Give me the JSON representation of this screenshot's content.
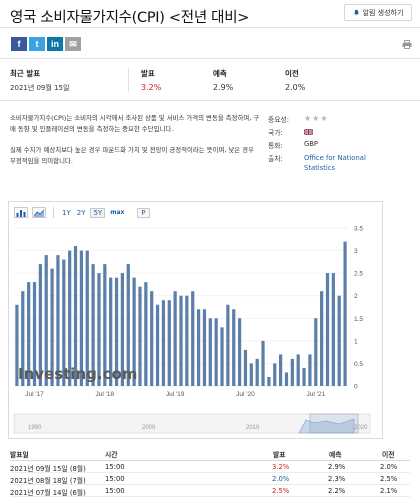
{
  "header": {
    "title": "영국 소비자물가지수(CPI) <전년 대비>",
    "alert_label": "알림 생성하기"
  },
  "share": {
    "buttons": [
      {
        "name": "facebook",
        "glyph": "f",
        "color": "#3b5998"
      },
      {
        "name": "twitter",
        "glyph": "t",
        "color": "#3aa3e3"
      },
      {
        "name": "linkedin",
        "glyph": "in",
        "color": "#0e76a8"
      },
      {
        "name": "email",
        "glyph": "✉",
        "color": "#a0a0a0"
      }
    ]
  },
  "stats": {
    "latest_label": "최근 발표",
    "latest_date": "2021년 09월 15일",
    "actual_label": "발표",
    "actual_value": "3.2%",
    "forecast_label": "예측",
    "forecast_value": "2.9%",
    "previous_label": "이전",
    "previous_value": "2.0%"
  },
  "description": {
    "p1": "소비자물가지수(CPI)는 소비자의 시각에서 조사된 상품 및 서비스 가격의 변동을 측정하며, 구매 동향 및 인플레이션의 변동을 측정하는 중요한 수단입니다.",
    "p2": "실제 수치가 예상치보다 높은 경우 파운드화 가치 및 전망이 긍정적이라는 뜻이며, 낮은 경우 부정적임을 의미합니다."
  },
  "meta": {
    "importance_label": "중요성:",
    "stars": "★★★",
    "country_label": "국가:",
    "currency_label": "통화:",
    "currency": "GBP",
    "source_label": "출처:",
    "source_line1": "Office for National",
    "source_line2": "Statistics"
  },
  "toolbar": {
    "ranges": [
      "1Y",
      "2Y",
      "5Y",
      "max"
    ],
    "active": "5Y",
    "p_label": "P"
  },
  "chart_data": {
    "type": "bar",
    "x_tick_labels": [
      "Jul '17",
      "Jul '18",
      "Jul '19",
      "Jul '20",
      "Jul '21"
    ],
    "y_ticks": [
      0,
      0.5,
      1,
      1.5,
      2,
      2.5,
      3,
      3.5
    ],
    "ylim": [
      0,
      3.5
    ],
    "series": [
      {
        "values": [
          1.8,
          2.1,
          2.3,
          2.3,
          2.7,
          2.9,
          2.6,
          2.9,
          2.8,
          3.0,
          3.1,
          3.0,
          3.0,
          2.7,
          2.5,
          2.7,
          2.4,
          2.4,
          2.5,
          2.7,
          2.4,
          2.2,
          2.3,
          2.1,
          1.8,
          1.9,
          1.9,
          2.1,
          2.0,
          2.0,
          2.1,
          1.7,
          1.7,
          1.5,
          1.5,
          1.3,
          1.8,
          1.7,
          1.5,
          0.8,
          0.5,
          0.6,
          1.0,
          0.2,
          0.5,
          0.7,
          0.3,
          0.6,
          0.7,
          0.4,
          0.7,
          1.5,
          2.1,
          2.5,
          2.5,
          2.0,
          3.2
        ]
      }
    ],
    "navigator_labels": [
      "1990",
      "2000",
      "2010",
      "2020"
    ],
    "watermark": "Investing.com"
  },
  "history": {
    "headers": [
      "발표일",
      "시간",
      "발표",
      "예측",
      "이전"
    ],
    "rows": [
      {
        "date": "2021년 09월 15일 (8월)",
        "time": "15:00",
        "actual": "3.2%",
        "actual_color": "red",
        "forecast": "2.9%",
        "previous": "2.0%"
      },
      {
        "date": "2021년 08월 18일 (7월)",
        "time": "15:00",
        "actual": "2.0%",
        "actual_color": "blue",
        "forecast": "2.3%",
        "previous": "2.5%"
      },
      {
        "date": "2021년 07월 14일 (6월)",
        "time": "15:00",
        "actual": "2.5%",
        "actual_color": "red",
        "forecast": "2.2%",
        "previous": "2.1%"
      }
    ]
  }
}
